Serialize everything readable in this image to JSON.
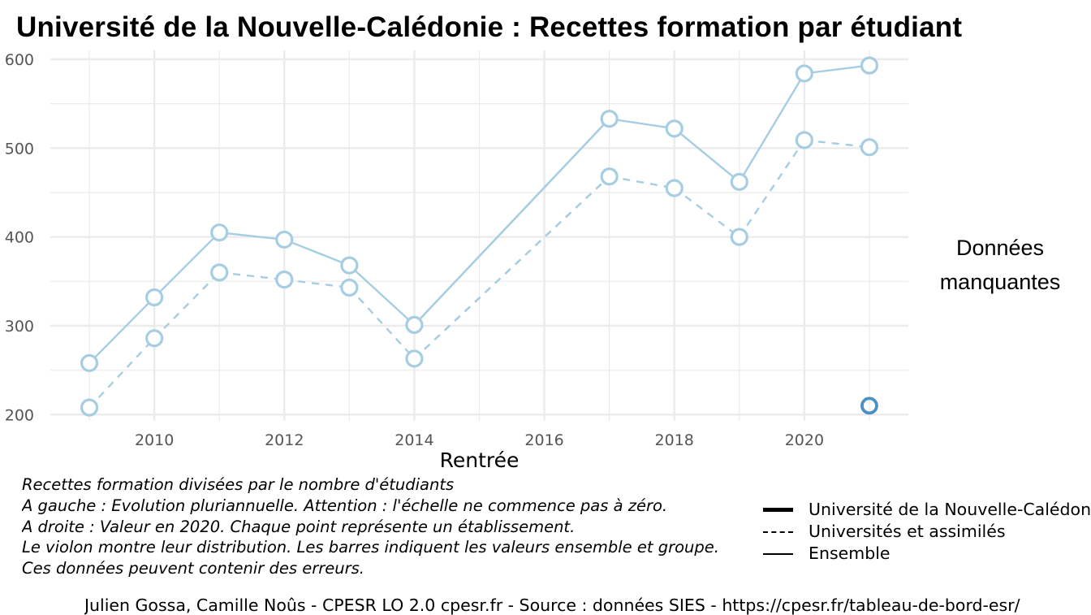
{
  "title": "Université de la Nouvelle-Calédonie  :  Recettes formation par étudiant",
  "missing_label": [
    "Données",
    "manquantes"
  ],
  "caption_lines": [
    "Recettes formation divisées par le nombre d'étudiants",
    "A gauche : Evolution pluriannuelle. Attention : l'échelle ne commence pas à zéro.",
    "A droite : Valeur en 2020. Chaque point représente un établissement.",
    "Le violon montre leur distribution. Les barres indiquent les valeurs ensemble et groupe.",
    "Ces données peuvent contenir des erreurs."
  ],
  "legend": [
    {
      "label": "Université de la Nouvelle-Calédonie",
      "style": "thick"
    },
    {
      "label": "Universités et assimilés",
      "style": "dashed"
    },
    {
      "label": "Ensemble",
      "style": "thin"
    }
  ],
  "footer": "Julien Gossa, Camille Noûs - CPESR LO 2.0 cpesr.fr - Source : données SIES - https://cpesr.fr/tableau-de-bord-esr/",
  "colors": {
    "series": "#a6cde2",
    "highlight": "#4a90c2",
    "grid": "#ebebeb",
    "tick": "#555555"
  },
  "chart_data": {
    "type": "line",
    "xlabel": "Rentrée",
    "ylabel": "",
    "xlim": [
      2008.4,
      2021.6
    ],
    "ylim": [
      193,
      610
    ],
    "xticks": [
      2010,
      2012,
      2014,
      2016,
      2018,
      2020
    ],
    "yticks": [
      200,
      300,
      400,
      500,
      600
    ],
    "grid": true,
    "series": [
      {
        "name": "Université de la Nouvelle-Calédonie",
        "linestyle": "solid",
        "points": [
          [
            2009,
            258
          ],
          [
            2010,
            332
          ],
          [
            2011,
            405
          ],
          [
            2012,
            397
          ],
          [
            2013,
            368
          ],
          [
            2014,
            301
          ],
          [
            2017,
            533
          ],
          [
            2018,
            522
          ],
          [
            2019,
            462
          ],
          [
            2020,
            584
          ],
          [
            2021,
            593
          ]
        ]
      },
      {
        "name": "Universités et assimilés",
        "linestyle": "dashed",
        "points": [
          [
            2009,
            208
          ],
          [
            2010,
            286
          ],
          [
            2011,
            360
          ],
          [
            2012,
            352
          ],
          [
            2013,
            343
          ],
          [
            2014,
            263
          ],
          [
            2017,
            468
          ],
          [
            2018,
            455
          ],
          [
            2019,
            400
          ],
          [
            2020,
            509
          ],
          [
            2021,
            501
          ]
        ]
      }
    ],
    "highlight_point": [
      2021,
      210
    ]
  }
}
